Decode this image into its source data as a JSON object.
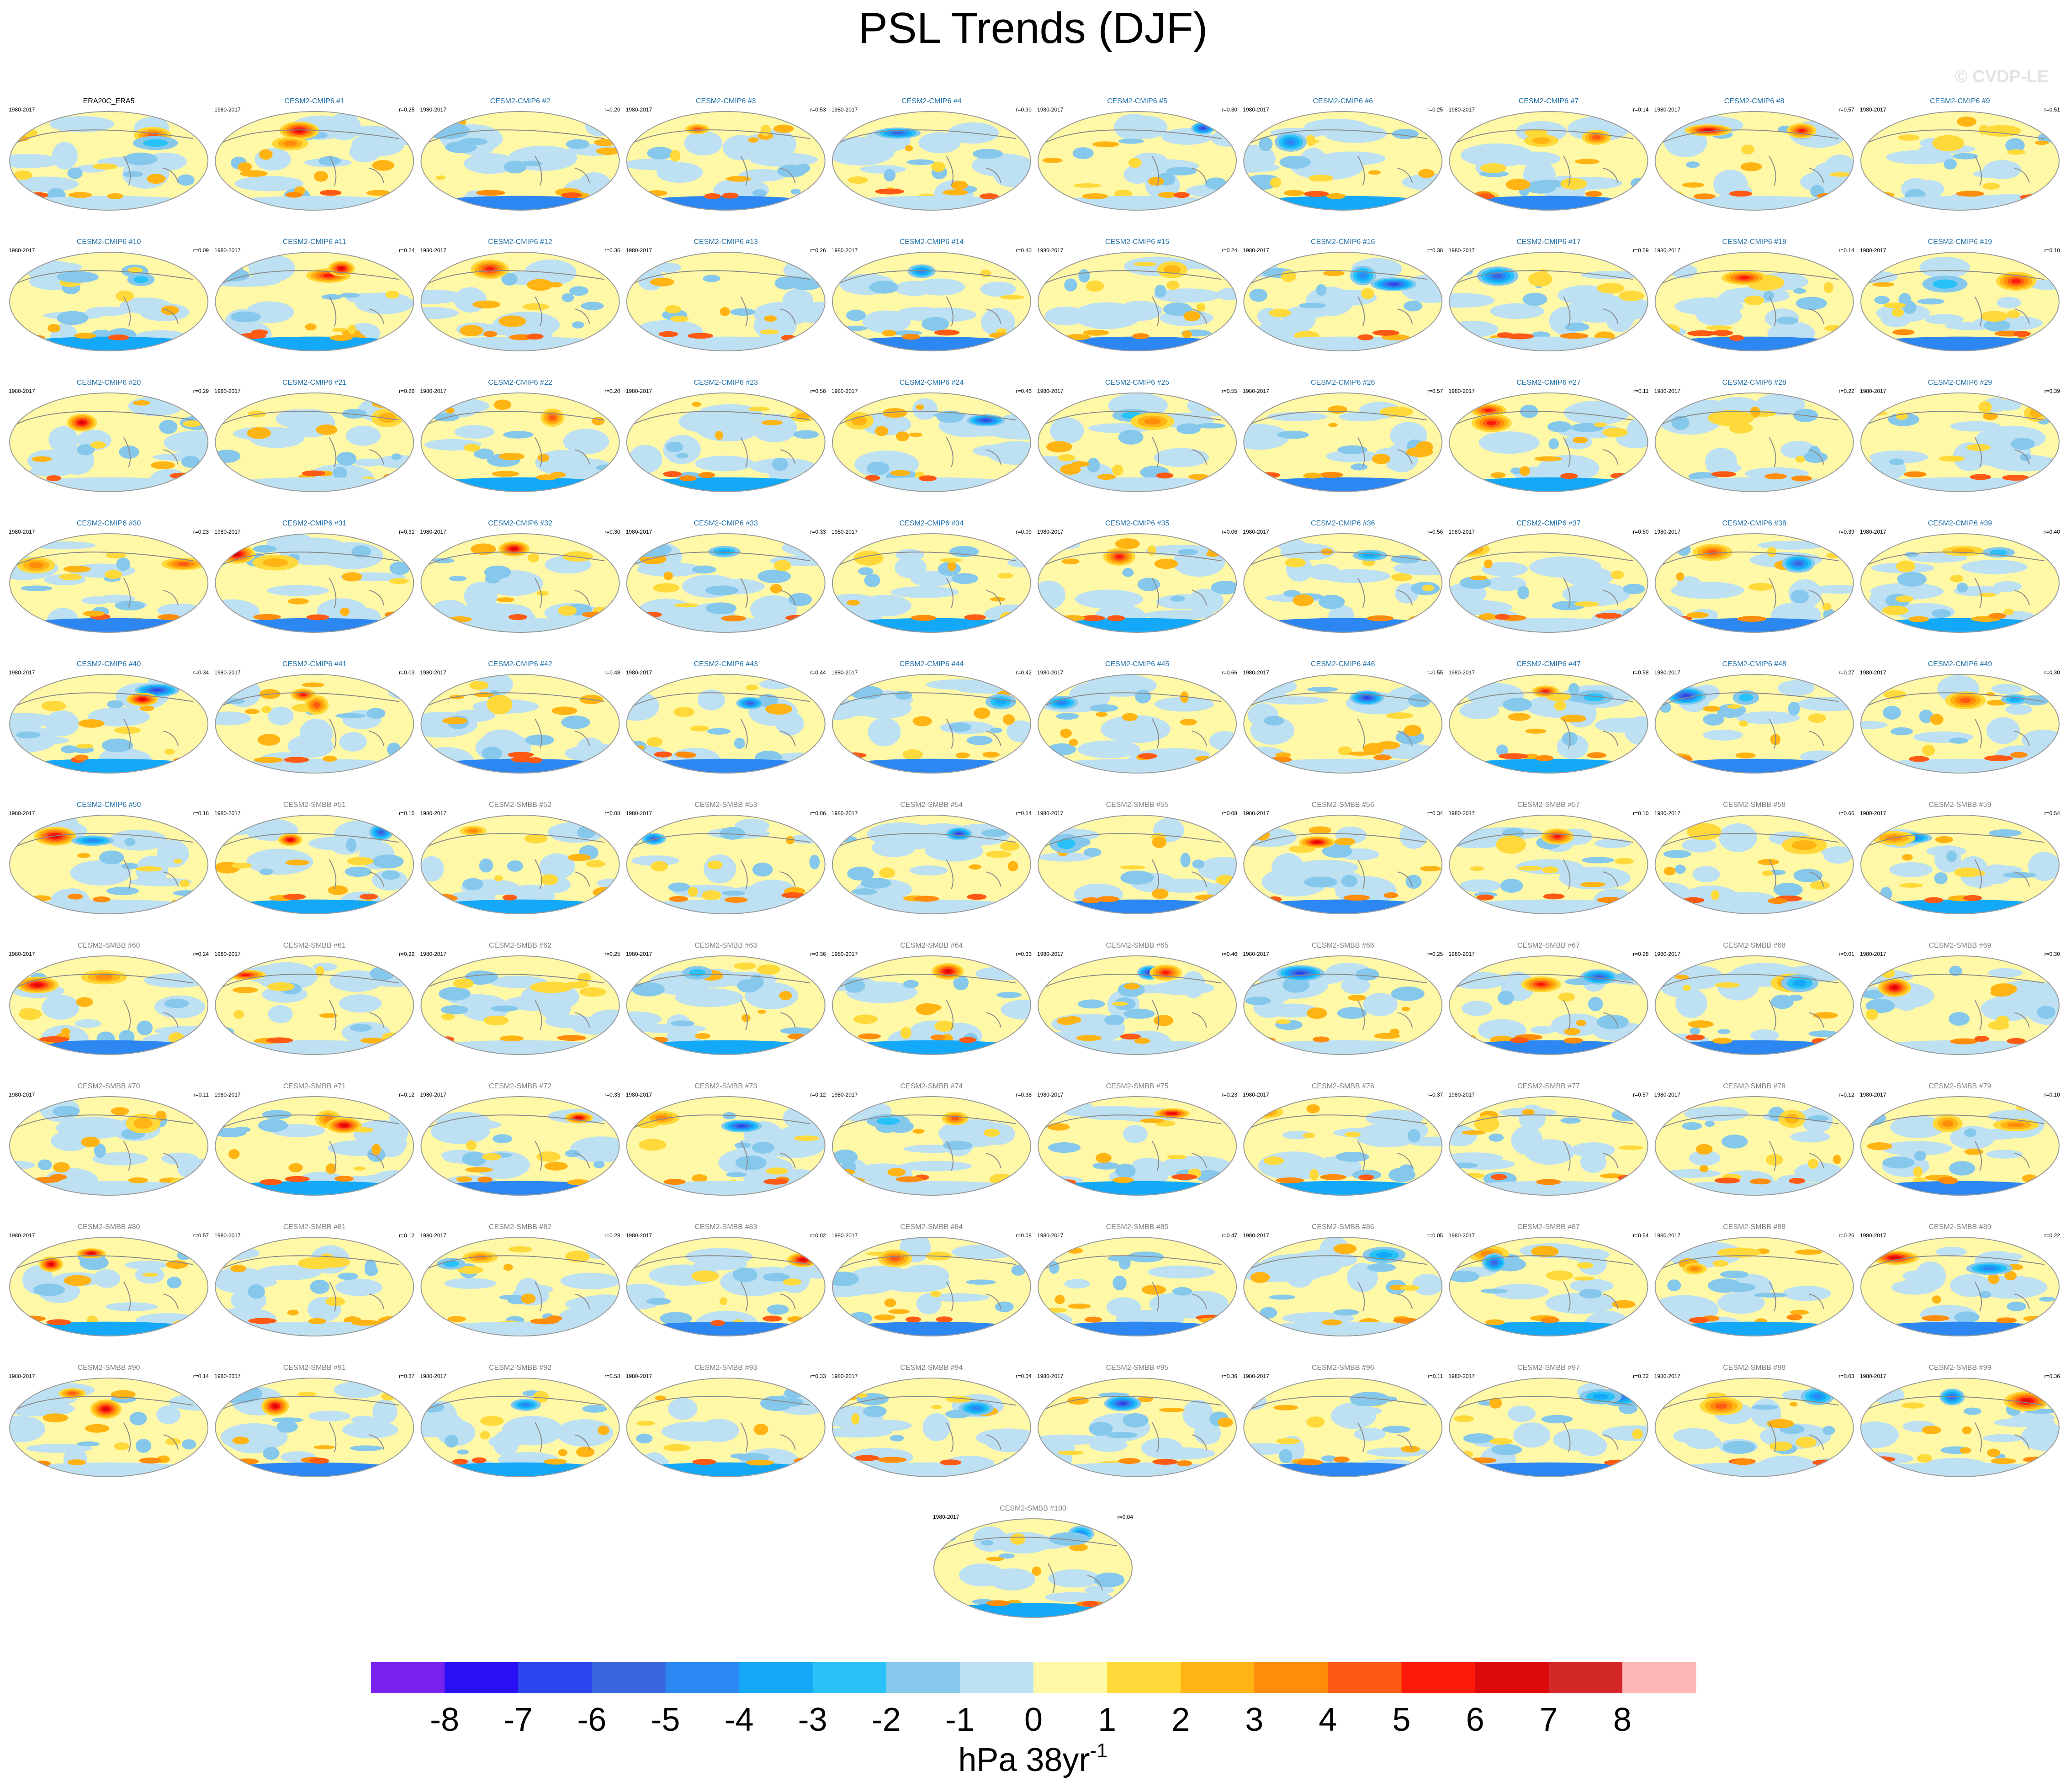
{
  "chart_data": {
    "type": "heatmap",
    "title": "PSL Trends (DJF)",
    "watermark": "© CVDP-LE",
    "units_base": "hPa 38yr",
    "units_exponent": "-1",
    "period": "1980-2017",
    "observation": {
      "title": "ERA20C_ERA5"
    },
    "panels": [
      {
        "name": "CESM2-CMIP6 #1",
        "r": "r=0.25"
      },
      {
        "name": "CESM2-CMIP6 #2",
        "r": "r=0.20"
      },
      {
        "name": "CESM2-CMIP6 #3",
        "r": "r=0.53"
      },
      {
        "name": "CESM2-CMIP6 #4",
        "r": "r=0.30"
      },
      {
        "name": "CESM2-CMIP6 #5",
        "r": "r=0.30"
      },
      {
        "name": "CESM2-CMIP6 #6",
        "r": "r=0.25"
      },
      {
        "name": "CESM2-CMIP6 #7",
        "r": "r=0.14"
      },
      {
        "name": "CESM2-CMIP6 #8",
        "r": "r=0.57"
      },
      {
        "name": "CESM2-CMIP6 #9",
        "r": "r=0.51"
      },
      {
        "name": "CESM2-CMIP6 #10",
        "r": "r=0.09"
      },
      {
        "name": "CESM2-CMIP6 #11",
        "r": "r=0.24"
      },
      {
        "name": "CESM2-CMIP6 #12",
        "r": "r=0.36"
      },
      {
        "name": "CESM2-CMIP6 #13",
        "r": "r=0.26"
      },
      {
        "name": "CESM2-CMIP6 #14",
        "r": "r=0.40"
      },
      {
        "name": "CESM2-CMIP6 #15",
        "r": "r=0.24"
      },
      {
        "name": "CESM2-CMIP6 #16",
        "r": "r=0.38"
      },
      {
        "name": "CESM2-CMIP6 #17",
        "r": "r=0.59"
      },
      {
        "name": "CESM2-CMIP6 #18",
        "r": "r=0.14"
      },
      {
        "name": "CESM2-CMIP6 #19",
        "r": "r=0.10"
      },
      {
        "name": "CESM2-CMIP6 #20",
        "r": "r=0.29"
      },
      {
        "name": "CESM2-CMIP6 #21",
        "r": "r=0.26"
      },
      {
        "name": "CESM2-CMIP6 #22",
        "r": "r=0.20"
      },
      {
        "name": "CESM2-CMIP6 #23",
        "r": "r=0.56"
      },
      {
        "name": "CESM2-CMIP6 #24",
        "r": "r=0.46"
      },
      {
        "name": "CESM2-CMIP6 #25",
        "r": "r=0.55"
      },
      {
        "name": "CESM2-CMIP6 #26",
        "r": "r=0.57"
      },
      {
        "name": "CESM2-CMIP6 #27",
        "r": "r=0.11"
      },
      {
        "name": "CESM2-CMIP6 #28",
        "r": "r=0.22"
      },
      {
        "name": "CESM2-CMIP6 #29",
        "r": "r=0.39"
      },
      {
        "name": "CESM2-CMIP6 #30",
        "r": "r=0.23"
      },
      {
        "name": "CESM2-CMIP6 #31",
        "r": "r=0.31"
      },
      {
        "name": "CESM2-CMIP6 #32",
        "r": "r=0.30"
      },
      {
        "name": "CESM2-CMIP6 #33",
        "r": "r=0.33"
      },
      {
        "name": "CESM2-CMIP6 #34",
        "r": "r=0.09"
      },
      {
        "name": "CESM2-CMIP6 #35",
        "r": "r=0.06"
      },
      {
        "name": "CESM2-CMIP6 #36",
        "r": "r=0.56"
      },
      {
        "name": "CESM2-CMIP6 #37",
        "r": "r=0.50"
      },
      {
        "name": "CESM2-CMIP6 #38",
        "r": "r=0.39"
      },
      {
        "name": "CESM2-CMIP6 #39",
        "r": "r=0.40"
      },
      {
        "name": "CESM2-CMIP6 #40",
        "r": "r=0.34"
      },
      {
        "name": "CESM2-CMIP6 #41",
        "r": "r=0.03"
      },
      {
        "name": "CESM2-CMIP6 #42",
        "r": "r=0.48"
      },
      {
        "name": "CESM2-CMIP6 #43",
        "r": "r=0.44"
      },
      {
        "name": "CESM2-CMIP6 #44",
        "r": "r=0.42"
      },
      {
        "name": "CESM2-CMIP6 #45",
        "r": "r=0.66"
      },
      {
        "name": "CESM2-CMIP6 #46",
        "r": "r=0.55"
      },
      {
        "name": "CESM2-CMIP6 #47",
        "r": "r=0.58"
      },
      {
        "name": "CESM2-CMIP6 #48",
        "r": "r=0.27"
      },
      {
        "name": "CESM2-CMIP6 #49",
        "r": "r=0.30"
      },
      {
        "name": "CESM2-CMIP6 #50",
        "r": "r=0.18"
      },
      {
        "name": "CESM2-SMBB #51",
        "r": "r=0.15"
      },
      {
        "name": "CESM2-SMBB #52",
        "r": "r=0.08"
      },
      {
        "name": "CESM2-SMBB #53",
        "r": "r=0.06"
      },
      {
        "name": "CESM2-SMBB #54",
        "r": "r=0.14"
      },
      {
        "name": "CESM2-SMBB #55",
        "r": "r=0.08"
      },
      {
        "name": "CESM2-SMBB #56",
        "r": "r=0.34"
      },
      {
        "name": "CESM2-SMBB #57",
        "r": "r=0.10"
      },
      {
        "name": "CESM2-SMBB #58",
        "r": "r=0.66"
      },
      {
        "name": "CESM2-SMBB #59",
        "r": "r=0.54"
      },
      {
        "name": "CESM2-SMBB #60",
        "r": "r=0.24"
      },
      {
        "name": "CESM2-SMBB #61",
        "r": "r=0.22"
      },
      {
        "name": "CESM2-SMBB #62",
        "r": "r=0.25"
      },
      {
        "name": "CESM2-SMBB #63",
        "r": "r=0.36"
      },
      {
        "name": "CESM2-SMBB #64",
        "r": "r=0.33"
      },
      {
        "name": "CESM2-SMBB #65",
        "r": "r=0.46"
      },
      {
        "name": "CESM2-SMBB #66",
        "r": "r=0.25"
      },
      {
        "name": "CESM2-SMBB #67",
        "r": "r=0.28"
      },
      {
        "name": "CESM2-SMBB #68",
        "r": "r=0.01"
      },
      {
        "name": "CESM2-SMBB #69",
        "r": "r=0.30"
      },
      {
        "name": "CESM2-SMBB #70",
        "r": "r=0.11"
      },
      {
        "name": "CESM2-SMBB #71",
        "r": "r=0.12"
      },
      {
        "name": "CESM2-SMBB #72",
        "r": "r=0.33"
      },
      {
        "name": "CESM2-SMBB #73",
        "r": "r=0.12"
      },
      {
        "name": "CESM2-SMBB #74",
        "r": "r=0.38"
      },
      {
        "name": "CESM2-SMBB #75",
        "r": "r=0.23"
      },
      {
        "name": "CESM2-SMBB #76",
        "r": "r=0.37"
      },
      {
        "name": "CESM2-SMBB #77",
        "r": "r=0.57"
      },
      {
        "name": "CESM2-SMBB #78",
        "r": "r=0.12"
      },
      {
        "name": "CESM2-SMBB #79",
        "r": "r=0.10"
      },
      {
        "name": "CESM2-SMBB #80",
        "r": "r=0.57"
      },
      {
        "name": "CESM2-SMBB #81",
        "r": "r=0.12"
      },
      {
        "name": "CESM2-SMBB #82",
        "r": "r=0.28"
      },
      {
        "name": "CESM2-SMBB #83",
        "r": "r=0.02"
      },
      {
        "name": "CESM2-SMBB #84",
        "r": "r=0.08"
      },
      {
        "name": "CESM2-SMBB #85",
        "r": "r=0.47"
      },
      {
        "name": "CESM2-SMBB #86",
        "r": "r=0.05"
      },
      {
        "name": "CESM2-SMBB #87",
        "r": "r=0.54"
      },
      {
        "name": "CESM2-SMBB #88",
        "r": "r=0.26"
      },
      {
        "name": "CESM2-SMBB #89",
        "r": "r=0.22"
      },
      {
        "name": "CESM2-SMBB #90",
        "r": "r=0.14"
      },
      {
        "name": "CESM2-SMBB #91",
        "r": "r=0.37"
      },
      {
        "name": "CESM2-SMBB #92",
        "r": "r=0.58"
      },
      {
        "name": "CESM2-SMBB #93",
        "r": "r=0.33"
      },
      {
        "name": "CESM2-SMBB #94",
        "r": "r=0.04"
      },
      {
        "name": "CESM2-SMBB #95",
        "r": "r=0.36"
      },
      {
        "name": "CESM2-SMBB #96",
        "r": "r=0.11"
      },
      {
        "name": "CESM2-SMBB #97",
        "r": "r=0.32"
      },
      {
        "name": "CESM2-SMBB #98",
        "r": "r=0.03"
      },
      {
        "name": "CESM2-SMBB #99",
        "r": "r=0.36"
      },
      {
        "name": "CESM2-SMBB #100",
        "r": "r=0.04"
      }
    ],
    "colorbar": {
      "labels": [
        "-8",
        "-7",
        "-6",
        "-5",
        "-4",
        "-3",
        "-2",
        "-1",
        "0",
        "1",
        "2",
        "3",
        "4",
        "5",
        "6",
        "7",
        "8"
      ],
      "colors": [
        "#7a22ee",
        "#2a10f6",
        "#2a44ee",
        "#3a66dd",
        "#2d87f2",
        "#14a8f8",
        "#28c2f8",
        "#86c8ec",
        "#bde0f3",
        "#fff8a6",
        "#ffd93a",
        "#ffb414",
        "#ff8c0a",
        "#ff5a14",
        "#ff1a0a",
        "#dc0a0a",
        "#d42828",
        "#ffb6b6"
      ]
    },
    "colors": {
      "cmip6_title": "#1f6fa8",
      "smbb_title": "#808080",
      "obs_title": "#000000",
      "coastline": "#8a8a8a"
    }
  }
}
